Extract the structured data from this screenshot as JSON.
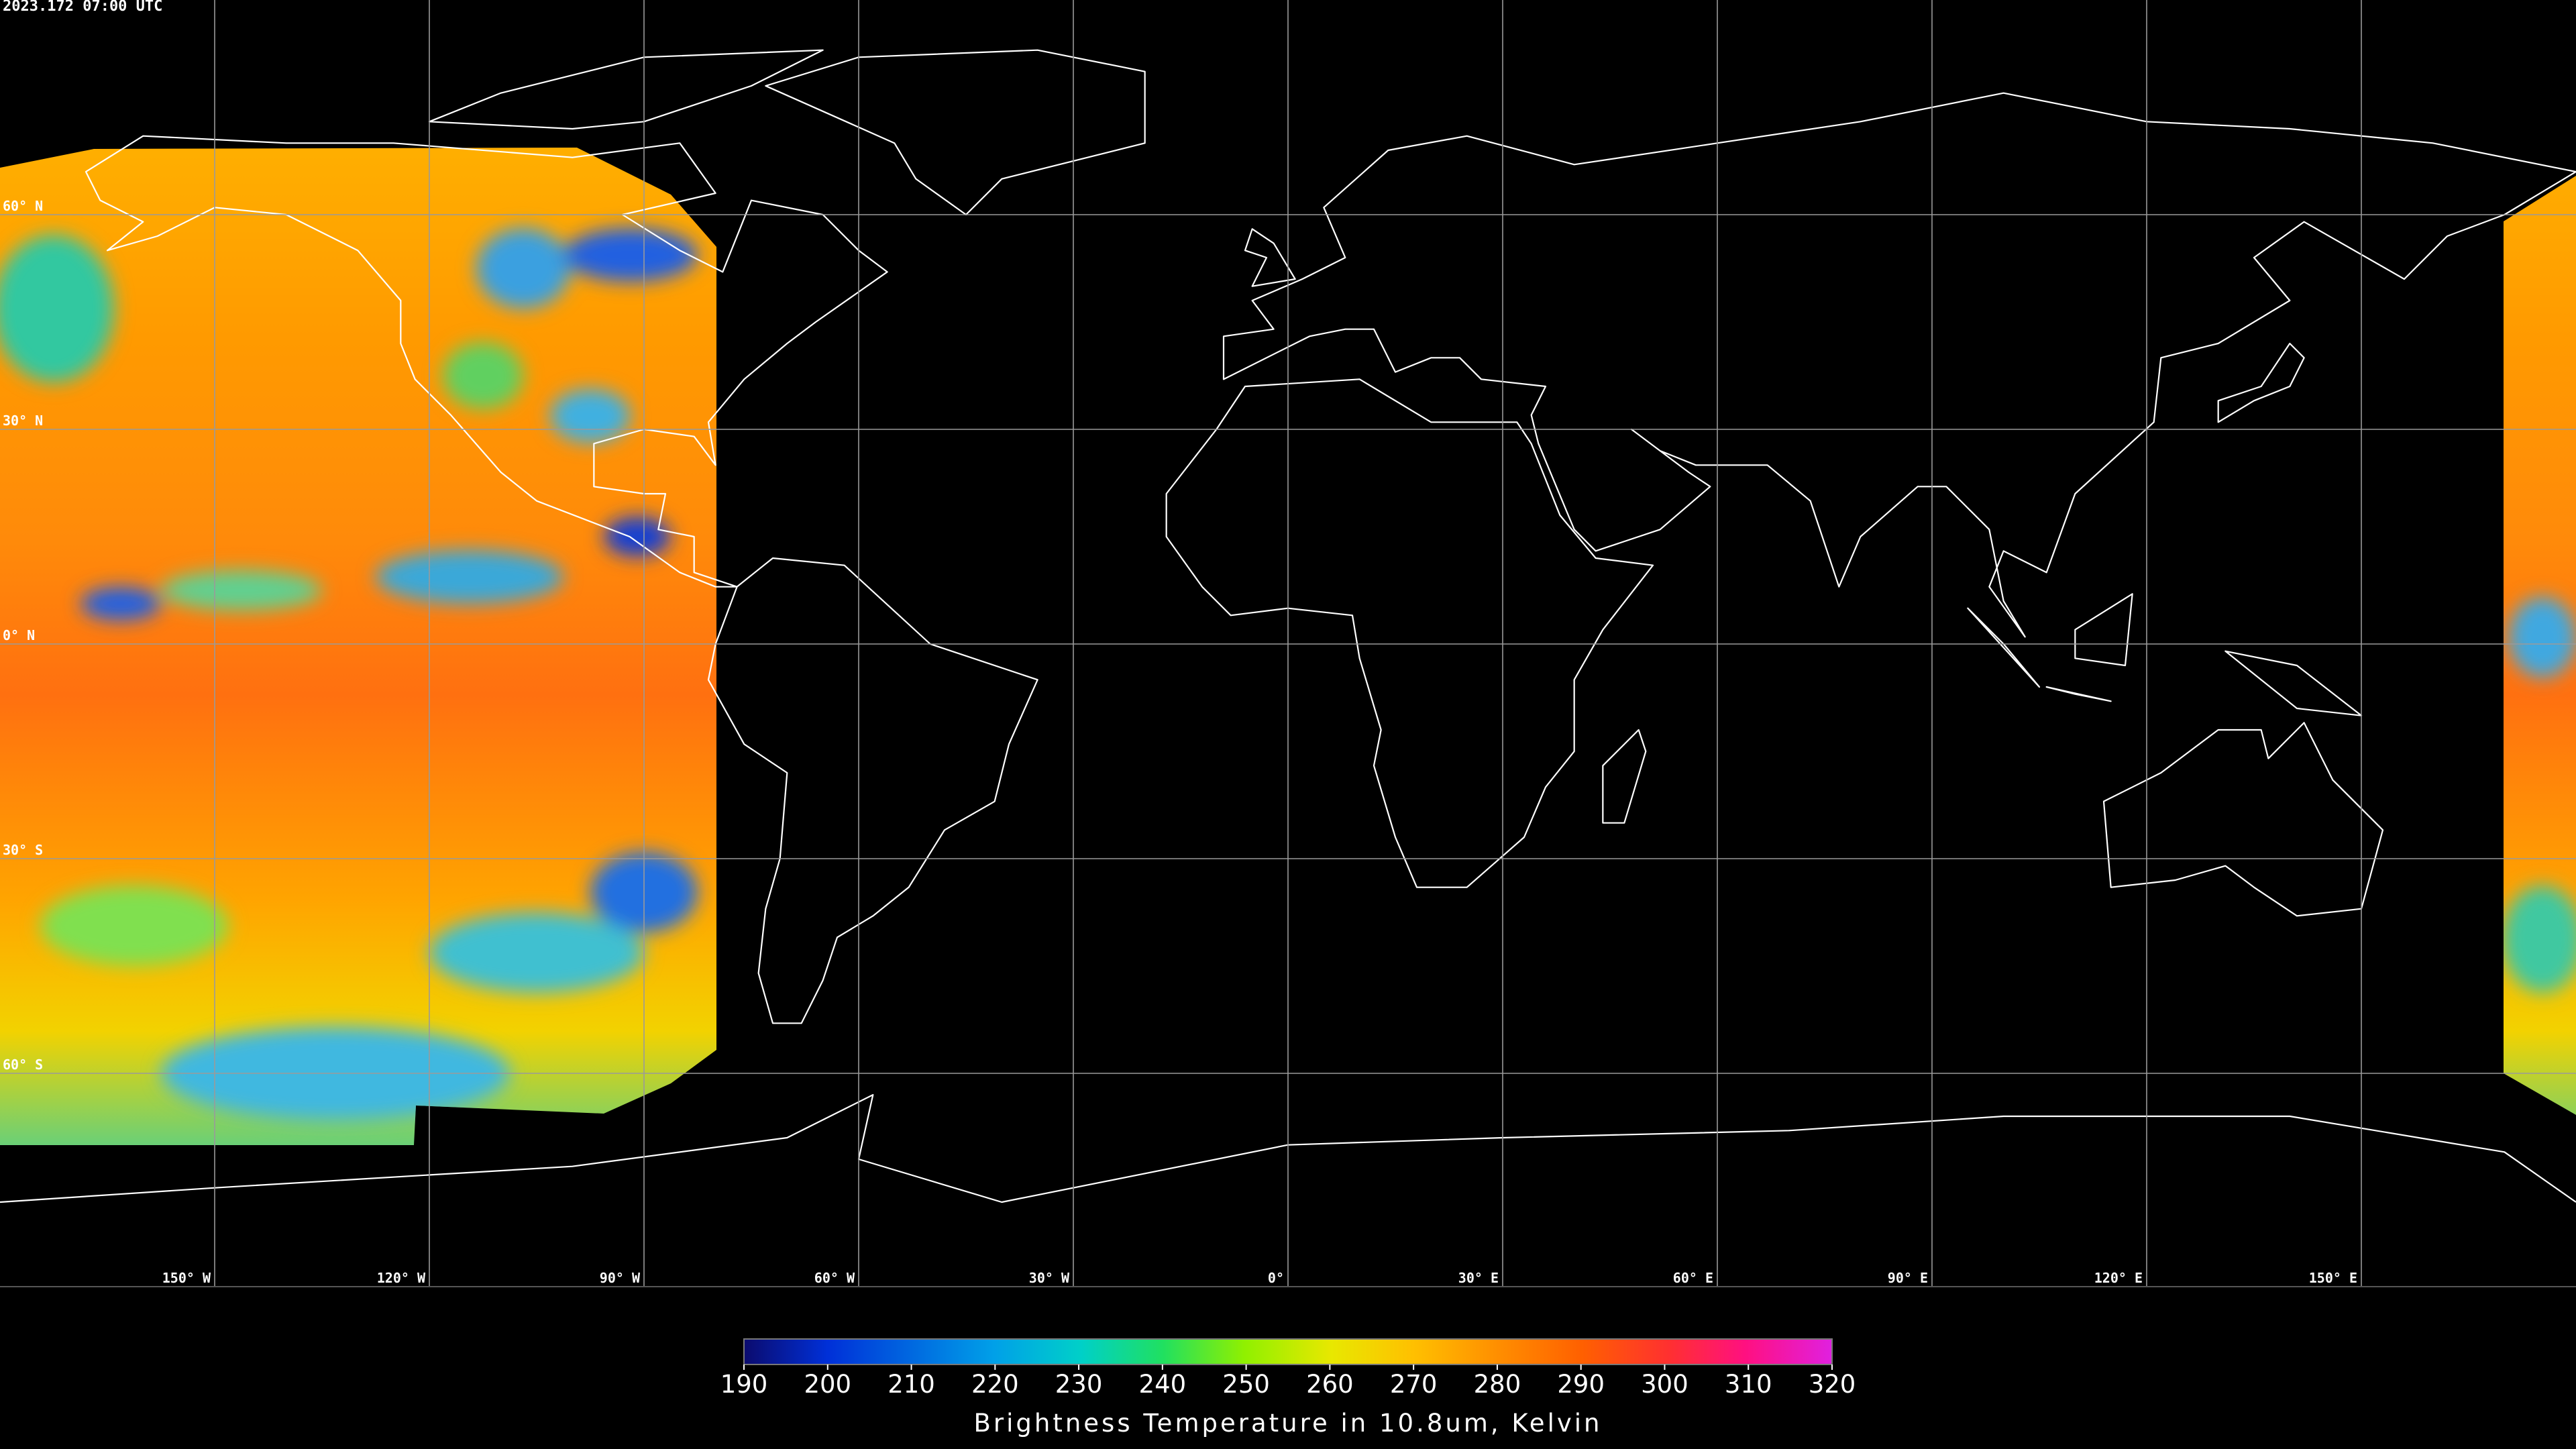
{
  "timestamp": "2023.172 07:00 UTC",
  "longitude_labels": [
    "150° W",
    "120° W",
    "90° W",
    "60° W",
    "30° W",
    "0°",
    "30° E",
    "60° E",
    "90° E",
    "120° E",
    "150° E"
  ],
  "latitude_labels": [
    "60° N",
    "30° N",
    "0° N",
    "30° S",
    "60° S"
  ],
  "colorbar": {
    "ticks": [
      190,
      200,
      210,
      220,
      230,
      240,
      250,
      260,
      270,
      280,
      290,
      300,
      310,
      320
    ],
    "label": "Brightness Temperature in 10.8um, Kelvin"
  }
}
